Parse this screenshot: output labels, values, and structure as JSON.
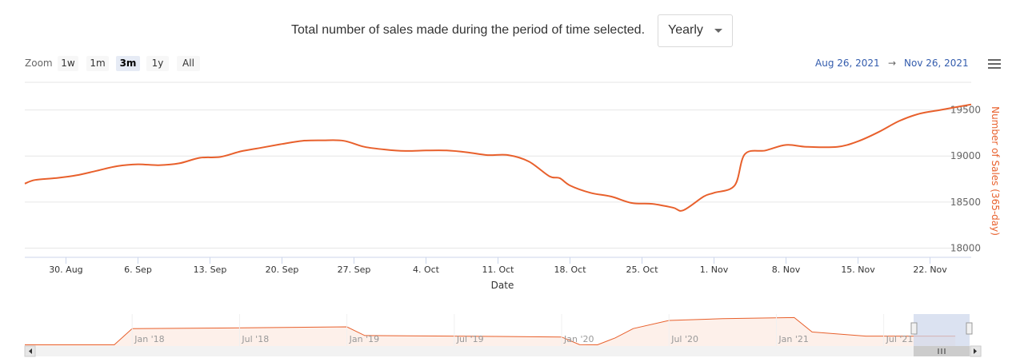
{
  "header": {
    "text": "Total number of sales made during the period of time selected.",
    "select_value": "Yearly"
  },
  "zoom": {
    "label": "Zoom",
    "buttons": [
      "1w",
      "1m",
      "3m",
      "1y",
      "All"
    ],
    "active": "3m"
  },
  "range": {
    "from": "Aug 26, 2021",
    "arrow": "→",
    "to": "Nov 26, 2021"
  },
  "icons": {
    "menu": "hamburger-menu-icon",
    "scroll_left": "arrow-left-icon",
    "scroll_right": "arrow-right-icon",
    "grip": "grip-icon"
  },
  "colors": {
    "series": "#e8602c",
    "navigator_fill": "#fdf0ea",
    "navigator_mask": "#ccd6eb",
    "range_text": "#335cad"
  },
  "chart_data": {
    "type": "line",
    "xlabel": "Date",
    "ylabel": "Number of Sales (365-day)",
    "y_axis_position": "right",
    "ylim": [
      17900,
      19800
    ],
    "yticks": [
      18000,
      18500,
      19000,
      19500
    ],
    "xlim": [
      "2021-08-26",
      "2021-11-26"
    ],
    "xticks": [
      {
        "date": "2021-08-30",
        "label": "30. Aug"
      },
      {
        "date": "2021-09-06",
        "label": "6. Sep"
      },
      {
        "date": "2021-09-13",
        "label": "13. Sep"
      },
      {
        "date": "2021-09-20",
        "label": "20. Sep"
      },
      {
        "date": "2021-09-27",
        "label": "27. Sep"
      },
      {
        "date": "2021-10-04",
        "label": "4. Oct"
      },
      {
        "date": "2021-10-11",
        "label": "11. Oct"
      },
      {
        "date": "2021-10-18",
        "label": "18. Oct"
      },
      {
        "date": "2021-10-25",
        "label": "25. Oct"
      },
      {
        "date": "2021-11-01",
        "label": "1. Nov"
      },
      {
        "date": "2021-11-08",
        "label": "8. Nov"
      },
      {
        "date": "2021-11-15",
        "label": "15. Nov"
      },
      {
        "date": "2021-11-22",
        "label": "22. Nov"
      }
    ],
    "grid": true,
    "legend": "none",
    "series": [
      {
        "points": [
          [
            "2021-08-26",
            18700
          ],
          [
            "2021-08-27",
            18740
          ],
          [
            "2021-08-29",
            18760
          ],
          [
            "2021-08-31",
            18790
          ],
          [
            "2021-09-02",
            18840
          ],
          [
            "2021-09-04",
            18890
          ],
          [
            "2021-09-06",
            18910
          ],
          [
            "2021-09-08",
            18900
          ],
          [
            "2021-09-10",
            18920
          ],
          [
            "2021-09-12",
            18980
          ],
          [
            "2021-09-14",
            18990
          ],
          [
            "2021-09-16",
            19050
          ],
          [
            "2021-09-18",
            19090
          ],
          [
            "2021-09-20",
            19130
          ],
          [
            "2021-09-22",
            19165
          ],
          [
            "2021-09-24",
            19170
          ],
          [
            "2021-09-26",
            19165
          ],
          [
            "2021-09-28",
            19100
          ],
          [
            "2021-09-30",
            19070
          ],
          [
            "2021-10-02",
            19055
          ],
          [
            "2021-10-04",
            19060
          ],
          [
            "2021-10-06",
            19060
          ],
          [
            "2021-10-08",
            19040
          ],
          [
            "2021-10-10",
            19010
          ],
          [
            "2021-10-12",
            19010
          ],
          [
            "2021-10-14",
            18940
          ],
          [
            "2021-10-16",
            18780
          ],
          [
            "2021-10-17",
            18760
          ],
          [
            "2021-10-18",
            18680
          ],
          [
            "2021-10-20",
            18600
          ],
          [
            "2021-10-22",
            18560
          ],
          [
            "2021-10-24",
            18490
          ],
          [
            "2021-10-26",
            18480
          ],
          [
            "2021-10-28",
            18440
          ],
          [
            "2021-10-29",
            18410
          ],
          [
            "2021-10-31",
            18560
          ],
          [
            "2021-11-01",
            18600
          ],
          [
            "2021-11-03",
            18680
          ],
          [
            "2021-11-04",
            19020
          ],
          [
            "2021-11-06",
            19060
          ],
          [
            "2021-11-08",
            19120
          ],
          [
            "2021-11-10",
            19100
          ],
          [
            "2021-11-13",
            19100
          ],
          [
            "2021-11-15",
            19160
          ],
          [
            "2021-11-17",
            19260
          ],
          [
            "2021-11-19",
            19380
          ],
          [
            "2021-11-21",
            19460
          ],
          [
            "2021-11-23",
            19500
          ],
          [
            "2021-11-26",
            19560
          ]
        ]
      }
    ],
    "navigator": {
      "labels": [
        "Jan '18",
        "Jul '18",
        "Jan '19",
        "Jul '19",
        "Jan '20",
        "Jul '20",
        "Jan '21",
        "Jul '21"
      ],
      "points": [
        [
          "2017-07",
          17200
        ],
        [
          "2017-12",
          17200
        ],
        [
          "2018-01",
          20000
        ],
        [
          "2018-06",
          20100
        ],
        [
          "2019-01",
          20300
        ],
        [
          "2019-02",
          18800
        ],
        [
          "2019-07",
          18700
        ],
        [
          "2020-01",
          18550
        ],
        [
          "2020-02",
          17250
        ],
        [
          "2020-03",
          17200
        ],
        [
          "2020-04",
          18400
        ],
        [
          "2020-05",
          20000
        ],
        [
          "2020-07",
          21400
        ],
        [
          "2020-10",
          21700
        ],
        [
          "2021-02",
          21900
        ],
        [
          "2021-03",
          19400
        ],
        [
          "2021-06",
          18700
        ],
        [
          "2021-11",
          18700
        ]
      ]
    }
  }
}
